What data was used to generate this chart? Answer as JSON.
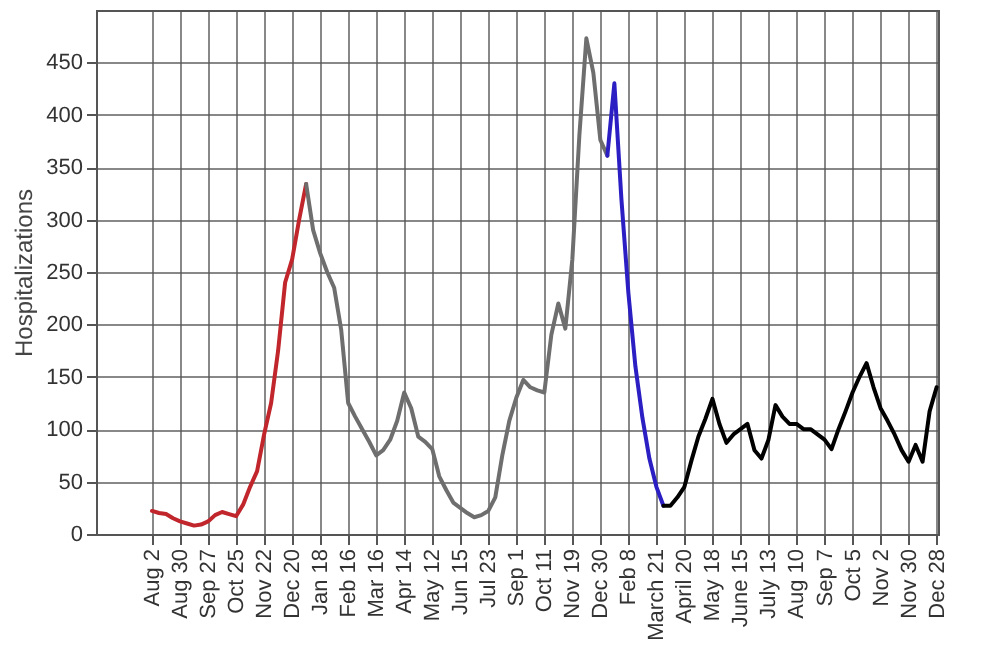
{
  "chart_data": {
    "type": "line",
    "ylabel": "Hospitalizations",
    "ylim": [
      0,
      500
    ],
    "yticks": [
      0,
      50,
      100,
      150,
      200,
      250,
      300,
      350,
      400,
      450
    ],
    "categories": [
      "Aug 2",
      null,
      null,
      null,
      "Aug 30",
      null,
      null,
      null,
      "Sep 27",
      null,
      null,
      null,
      "Oct 25",
      null,
      null,
      null,
      "Nov 22",
      null,
      null,
      null,
      "Dec 20",
      null,
      null,
      null,
      "Jan 18",
      null,
      null,
      null,
      "Feb 16",
      null,
      null,
      null,
      "Mar 16",
      null,
      null,
      null,
      "Apr 14",
      null,
      null,
      null,
      "May 12",
      null,
      null,
      null,
      "Jun 15",
      null,
      null,
      null,
      "Jul 23",
      null,
      null,
      null,
      "Sep 1",
      null,
      null,
      null,
      "Oct 11",
      null,
      null,
      null,
      "Nov 19",
      null,
      null,
      null,
      "Dec 30",
      null,
      null,
      null,
      "Feb 8",
      null,
      null,
      null,
      "March 21",
      null,
      null,
      null,
      "April 20",
      null,
      null,
      null,
      "May 18",
      null,
      null,
      null,
      "June 15",
      null,
      null,
      null,
      "July 13",
      null,
      null,
      null,
      "Aug 10",
      null,
      null,
      null,
      "Sep 7",
      null,
      null,
      null,
      "Oct 5",
      null,
      null,
      null,
      "Nov 2",
      null,
      null,
      null,
      "Nov 30",
      null,
      null,
      null,
      "Dec 28"
    ],
    "grid": true,
    "legend": false,
    "marker": "none",
    "line_style": "solid",
    "series": [
      {
        "color": "#c0262b",
        "values": [
          22,
          20,
          19,
          15,
          12,
          10,
          8,
          9,
          12,
          18,
          21,
          19,
          17,
          28,
          45,
          60,
          95,
          125,
          175,
          240,
          262,
          300,
          334,
          null,
          null,
          null,
          null,
          null,
          null,
          null,
          null,
          null,
          null,
          null,
          null,
          null,
          null,
          null,
          null,
          null,
          null,
          null,
          null,
          null,
          null,
          null,
          null,
          null,
          null,
          null,
          null,
          null,
          null,
          null,
          null,
          null,
          null,
          null,
          null,
          null,
          null,
          null,
          null,
          null,
          null,
          null,
          null,
          null,
          null,
          null,
          null,
          null,
          null,
          null,
          null,
          null,
          null,
          null,
          null,
          null,
          null,
          null,
          null,
          null,
          null,
          null,
          null,
          null,
          null,
          null,
          null,
          null,
          null,
          null,
          null,
          null,
          null,
          null,
          null,
          null,
          null,
          null,
          null,
          null,
          null,
          null,
          null,
          null,
          null,
          null,
          null,
          null,
          null
        ]
      },
      {
        "color": "#6e6e6e",
        "values": [
          null,
          null,
          null,
          null,
          null,
          null,
          null,
          null,
          null,
          null,
          null,
          null,
          null,
          null,
          null,
          null,
          null,
          null,
          null,
          null,
          null,
          null,
          334,
          290,
          268,
          250,
          235,
          195,
          125,
          112,
          100,
          88,
          75,
          80,
          90,
          108,
          135,
          120,
          93,
          88,
          81,
          55,
          42,
          30,
          25,
          20,
          16,
          18,
          22,
          35,
          75,
          108,
          130,
          147,
          140,
          137,
          135,
          190,
          220,
          196,
          262,
          380,
          473,
          440,
          376,
          361,
          null,
          null,
          null,
          null,
          null,
          null,
          null,
          null,
          null,
          null,
          null,
          null,
          null,
          null,
          null,
          null,
          null,
          null,
          null,
          null,
          null,
          null,
          null,
          null,
          null,
          null,
          null,
          null,
          null,
          null,
          null,
          null,
          null,
          null,
          null,
          null,
          null,
          null,
          null,
          null,
          null,
          null,
          null,
          null,
          null,
          null,
          null
        ]
      },
      {
        "color": "#2b1fc4",
        "values": [
          null,
          null,
          null,
          null,
          null,
          null,
          null,
          null,
          null,
          null,
          null,
          null,
          null,
          null,
          null,
          null,
          null,
          null,
          null,
          null,
          null,
          null,
          null,
          null,
          null,
          null,
          null,
          null,
          null,
          null,
          null,
          null,
          null,
          null,
          null,
          null,
          null,
          null,
          null,
          null,
          null,
          null,
          null,
          null,
          null,
          null,
          null,
          null,
          null,
          null,
          null,
          null,
          null,
          null,
          null,
          null,
          null,
          null,
          null,
          null,
          null,
          null,
          null,
          null,
          null,
          361,
          430,
          320,
          230,
          160,
          111,
          72,
          45,
          27,
          null,
          null,
          null,
          null,
          null,
          null,
          null,
          null,
          null,
          null,
          null,
          null,
          null,
          null,
          null,
          null,
          null,
          null,
          null,
          null,
          null,
          null,
          null,
          null,
          null,
          null,
          null,
          null,
          null,
          null,
          null,
          null,
          null,
          null,
          null,
          null,
          null,
          null,
          null
        ]
      },
      {
        "color": "#000000",
        "values": [
          null,
          null,
          null,
          null,
          null,
          null,
          null,
          null,
          null,
          null,
          null,
          null,
          null,
          null,
          null,
          null,
          null,
          null,
          null,
          null,
          null,
          null,
          null,
          null,
          null,
          null,
          null,
          null,
          null,
          null,
          null,
          null,
          null,
          null,
          null,
          null,
          null,
          null,
          null,
          null,
          null,
          null,
          null,
          null,
          null,
          null,
          null,
          null,
          null,
          null,
          null,
          null,
          null,
          null,
          null,
          null,
          null,
          null,
          null,
          null,
          null,
          null,
          null,
          null,
          null,
          null,
          null,
          null,
          null,
          null,
          null,
          null,
          null,
          27,
          27,
          35,
          45,
          70,
          93,
          110,
          129,
          105,
          87,
          95,
          100,
          105,
          80,
          72,
          90,
          123,
          112,
          105,
          105,
          100,
          100,
          95,
          90,
          81,
          100,
          117,
          135,
          150,
          163,
          140,
          120,
          108,
          95,
          80,
          69,
          85,
          69,
          117,
          140
        ]
      }
    ]
  }
}
